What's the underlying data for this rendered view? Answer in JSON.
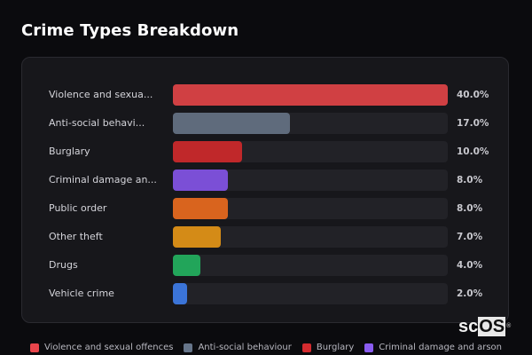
{
  "title": "Crime Types Breakdown",
  "chart_data": {
    "type": "bar",
    "orientation": "horizontal",
    "title": "Crime Types Breakdown",
    "categories": [
      "Violence and sexual offences",
      "Anti-social behaviour",
      "Burglary",
      "Criminal damage and arson",
      "Public order",
      "Other theft",
      "Drugs",
      "Vehicle crime"
    ],
    "display_labels": [
      "Violence and sexua...",
      "Anti-social behavi...",
      "Burglary",
      "Criminal damage an...",
      "Public order",
      "Other theft",
      "Drugs",
      "Vehicle crime"
    ],
    "values": [
      40.0,
      17.0,
      10.0,
      8.0,
      8.0,
      7.0,
      4.0,
      2.0
    ],
    "value_labels": [
      "40.0%",
      "17.0%",
      "10.0%",
      "8.0%",
      "8.0%",
      "7.0%",
      "4.0%",
      "2.0%"
    ],
    "colors": [
      "#d04043",
      "#5f6b7c",
      "#c0282a",
      "#7b4fd6",
      "#d9641e",
      "#d48b17",
      "#22a55a",
      "#3b74d8"
    ],
    "scale_max": 40,
    "grid": false,
    "legend_position": "bottom",
    "legend_visible": [
      "Violence and sexual offences",
      "Anti-social behaviour",
      "Burglary",
      "Criminal damage and arson"
    ]
  },
  "rows": [
    {
      "label": "Violence and sexua...",
      "value": "40.0%",
      "pct": 100,
      "color": "#d04043"
    },
    {
      "label": "Anti-social behavi...",
      "value": "17.0%",
      "pct": 42.5,
      "color": "#5f6b7c"
    },
    {
      "label": "Burglary",
      "value": "10.0%",
      "pct": 25,
      "color": "#c0282a"
    },
    {
      "label": "Criminal damage an...",
      "value": "8.0%",
      "pct": 20,
      "color": "#7b4fd6"
    },
    {
      "label": "Public order",
      "value": "8.0%",
      "pct": 20,
      "color": "#d9641e"
    },
    {
      "label": "Other theft",
      "value": "7.0%",
      "pct": 17.5,
      "color": "#d48b17"
    },
    {
      "label": "Drugs",
      "value": "4.0%",
      "pct": 10,
      "color": "#22a55a"
    },
    {
      "label": "Vehicle crime",
      "value": "2.0%",
      "pct": 5,
      "color": "#3b74d8"
    }
  ],
  "legend": [
    {
      "label": "Violence and sexual offences",
      "color": "#e8454b"
    },
    {
      "label": "Anti-social behaviour",
      "color": "#66758a"
    },
    {
      "label": "Burglary",
      "color": "#d42b2f"
    },
    {
      "label": "Criminal damage and arson",
      "color": "#8a5cf0"
    }
  ],
  "watermark": {
    "prefix": "sc",
    "box": "OS",
    "mark": "®"
  }
}
